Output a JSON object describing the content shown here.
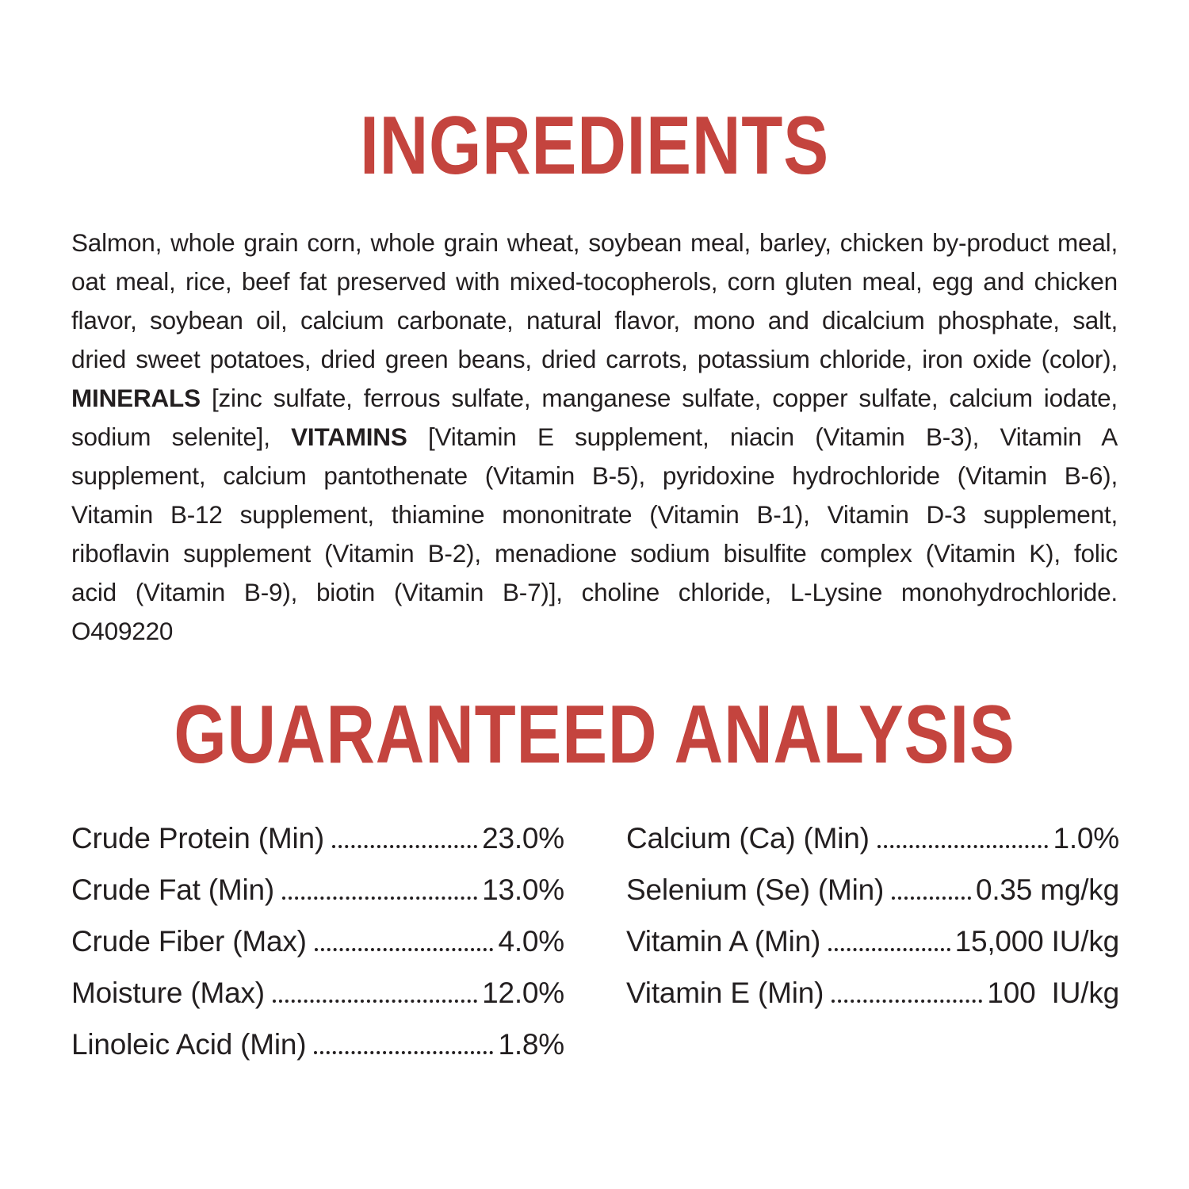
{
  "headings": {
    "ingredients": "INGREDIENTS",
    "guaranteed_analysis": "GUARANTEED ANALYSIS"
  },
  "colors": {
    "heading_red": "#c4443e",
    "text_black": "#231f20"
  },
  "ingredients_paragraph": {
    "segments": [
      {
        "text": "Salmon, whole grain corn, whole grain wheat, soybean meal, barley, chicken by-product meal, oat meal, rice, beef fat preserved with mixed-tocopherols, corn gluten meal, egg and chicken flavor, soybean oil, calcium carbonate, natural flavor, mono and dicalcium phosphate, salt, dried sweet potatoes, dried green beans, dried carrots, potassium chloride, iron oxide (color), ",
        "bold": false
      },
      {
        "text": "MINERALS",
        "bold": true
      },
      {
        "text": " [zinc sulfate, ferrous sulfate, manganese sulfate, copper sulfate, calcium iodate, sodium selenite], ",
        "bold": false
      },
      {
        "text": "VITAMINS",
        "bold": true
      },
      {
        "text": " [Vitamin E supplement, niacin (Vitamin B-3), Vitamin A supplement, calcium pantothenate (Vitamin B-5), pyridoxine hydrochloride (Vitamin B-6), Vitamin B-12 supplement, thiamine mononitrate (Vitamin B-1), Vitamin D-3 supplement, riboflavin supplement (Vitamin B-2), menadione sodium bisulfite complex (Vitamin K), folic acid (Vitamin B-9), biotin (Vitamin B-7)], choline chloride, L-Lysine monohydrochloride. O409220",
        "bold": false
      }
    ]
  },
  "guaranteed_analysis": {
    "left_column": [
      {
        "label": "Crude Protein (Min)",
        "value": "23.0%"
      },
      {
        "label": "Crude Fat (Min)",
        "value": "13.0%"
      },
      {
        "label": "Crude Fiber (Max)",
        "value": "4.0%"
      },
      {
        "label": "Moisture (Max)",
        "value": "12.0%"
      },
      {
        "label": "Linoleic Acid (Min)",
        "value": "1.8%"
      }
    ],
    "right_column": [
      {
        "label": "Calcium (Ca) (Min)",
        "value": "1.0%"
      },
      {
        "label": "Selenium (Se) (Min)",
        "value": "0.35 mg/kg"
      },
      {
        "label": "Vitamin A (Min)",
        "value": "15,000 IU/kg"
      },
      {
        "label": "Vitamin E (Min)",
        "value": "100  IU/kg"
      }
    ]
  }
}
